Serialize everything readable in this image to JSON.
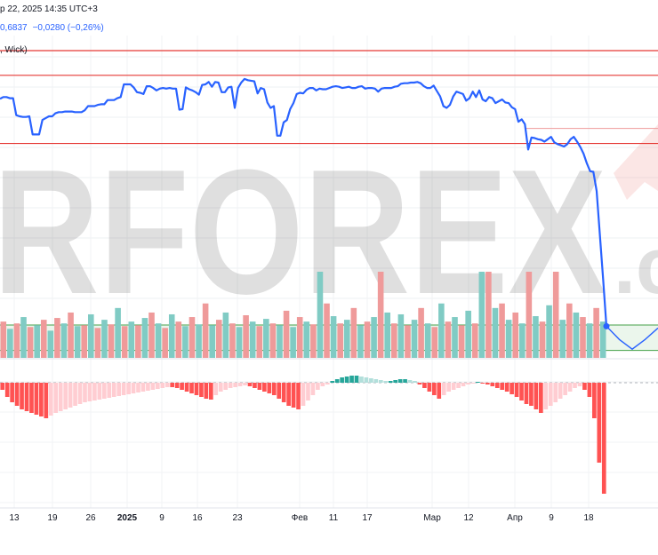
{
  "header": {
    "datetime": "р 22, 2025 14:35 UTC+3",
    "price": "0,6837",
    "change": "−0,0280 (−0,26%)",
    "style": ", Wick)"
  },
  "watermark": {
    "text": "RFOREX",
    "suffix": ".c"
  },
  "colors": {
    "price_line": "#2962ff",
    "level_line": "#e53935",
    "range_band": "#e8f5e9",
    "range_border": "#43a047",
    "volume_up": "#80cbc4",
    "volume_down": "#ef9a9a",
    "hist_neg_strong": "#ff5252",
    "hist_neg_weak": "#ffcdd2",
    "hist_pos_strong": "#26a69a",
    "hist_pos_weak": "#b2dfdb"
  },
  "chart_data": {
    "type": "line",
    "xlabel": "",
    "ylabel": "",
    "grid": true,
    "x_tick_labels": [
      "13",
      "19",
      "26",
      "2025",
      "9",
      "16",
      "23",
      "Фев",
      "11",
      "17",
      "Мар",
      "12",
      "Апр",
      "9",
      "18"
    ],
    "price_series": [
      107.5,
      107.8,
      107.8,
      107.6,
      107.6,
      104.8,
      104.6,
      104.5,
      104.5,
      104.6,
      101.6,
      101.6,
      101.6,
      104.0,
      104.3,
      104.6,
      104.6,
      105.1,
      105.3,
      105.3,
      105.4,
      105.4,
      105.4,
      105.3,
      105.3,
      105.3,
      105.6,
      106.3,
      106.3,
      106.3,
      106.5,
      106.6,
      106.6,
      107.3,
      107.3,
      107.3,
      107.6,
      107.8,
      109.9,
      109.9,
      109.9,
      109.4,
      108.6,
      108.5,
      108.3,
      109.6,
      109.6,
      109.3,
      108.9,
      109.2,
      109.3,
      109.2,
      109.3,
      109.2,
      109.2,
      105.7,
      105.8,
      109.4,
      109.1,
      108.9,
      108.6,
      108.2,
      109.8,
      109.9,
      110.3,
      109.5,
      110.3,
      110.2,
      108.6,
      108.6,
      109.4,
      109.5,
      106.0,
      109.3,
      110.2,
      110.8,
      110.6,
      110.5,
      110.4,
      108.4,
      109.3,
      109.1,
      106.9,
      106.0,
      106.3,
      101.4,
      101.4,
      103.6,
      104.0,
      105.8,
      106.8,
      108.3,
      108.5,
      108.4,
      109.0,
      109.3,
      109.3,
      108.9,
      109.2,
      109.1,
      109.1,
      109.3,
      109.5,
      109.6,
      109.5,
      109.3,
      109.4,
      109.5,
      109.3,
      109.3,
      109.5,
      109.6,
      109.2,
      109.3,
      109.3,
      109.2,
      108.7,
      109.2,
      109.3,
      109.3,
      109.3,
      109.5,
      109.6,
      110.0,
      110.1,
      110.1,
      110.2,
      110.2,
      110.3,
      110.1,
      109.6,
      109.3,
      109.3,
      109.7,
      108.8,
      107.9,
      106.3,
      106.0,
      106.5,
      107.9,
      108.7,
      108.5,
      108.3,
      107.2,
      107.6,
      108.7,
      107.8,
      108.9,
      107.4,
      107.1,
      107.8,
      107.6,
      106.8,
      107.1,
      107.4,
      106.9,
      106.8,
      106.1,
      105.8,
      103.7,
      104.1,
      103.3,
      99.1,
      101.1,
      101.0,
      100.8,
      100.7,
      100.4,
      100.8,
      101.2,
      100.3,
      100.0,
      99.8,
      99.6,
      100.0,
      100.8,
      101.2,
      100.4,
      99.5,
      98.4,
      96.8,
      95.5,
      95.4,
      92.2,
      84.8,
      77.6,
      69.8
    ],
    "forecast_series": [
      69.8,
      67.6,
      66.0,
      67.6,
      69.5
    ],
    "y_range": [
      65,
      118
    ],
    "horizontal_levels": [
      115.5,
      111.4,
      100.1
    ],
    "secondary_level": 102.6,
    "range_band": [
      70.0,
      65.8
    ],
    "volume": [
      {
        "dir": "down",
        "v": 40
      },
      {
        "dir": "up",
        "v": 32
      },
      {
        "dir": "down",
        "v": 38
      },
      {
        "dir": "up",
        "v": 45
      },
      {
        "dir": "down",
        "v": 34
      },
      {
        "dir": "up",
        "v": 36
      },
      {
        "dir": "down",
        "v": 42
      },
      {
        "dir": "up",
        "v": 30
      },
      {
        "dir": "down",
        "v": 44
      },
      {
        "dir": "up",
        "v": 38
      },
      {
        "dir": "down",
        "v": 50
      },
      {
        "dir": "up",
        "v": 35
      },
      {
        "dir": "down",
        "v": 36
      },
      {
        "dir": "up",
        "v": 48
      },
      {
        "dir": "down",
        "v": 33
      },
      {
        "dir": "up",
        "v": 42
      },
      {
        "dir": "down",
        "v": 37
      },
      {
        "dir": "up",
        "v": 55
      },
      {
        "dir": "down",
        "v": 35
      },
      {
        "dir": "up",
        "v": 40
      },
      {
        "dir": "down",
        "v": 36
      },
      {
        "dir": "up",
        "v": 44
      },
      {
        "dir": "down",
        "v": 50
      },
      {
        "dir": "up",
        "v": 38
      },
      {
        "dir": "down",
        "v": 33
      },
      {
        "dir": "up",
        "v": 48
      },
      {
        "dir": "down",
        "v": 40
      },
      {
        "dir": "up",
        "v": 35
      },
      {
        "dir": "down",
        "v": 45
      },
      {
        "dir": "up",
        "v": 37
      },
      {
        "dir": "down",
        "v": 60
      },
      {
        "dir": "up",
        "v": 36
      },
      {
        "dir": "down",
        "v": 42
      },
      {
        "dir": "up",
        "v": 50
      },
      {
        "dir": "down",
        "v": 38
      },
      {
        "dir": "up",
        "v": 34
      },
      {
        "dir": "down",
        "v": 47
      },
      {
        "dir": "up",
        "v": 40
      },
      {
        "dir": "down",
        "v": 35
      },
      {
        "dir": "up",
        "v": 43
      },
      {
        "dir": "down",
        "v": 38
      },
      {
        "dir": "up",
        "v": 36
      },
      {
        "dir": "down",
        "v": 52
      },
      {
        "dir": "up",
        "v": 34
      },
      {
        "dir": "down",
        "v": 45
      },
      {
        "dir": "up",
        "v": 40
      },
      {
        "dir": "down",
        "v": 37
      },
      {
        "dir": "up",
        "v": 95
      },
      {
        "dir": "down",
        "v": 60
      },
      {
        "dir": "up",
        "v": 46
      },
      {
        "dir": "down",
        "v": 38
      },
      {
        "dir": "up",
        "v": 42
      },
      {
        "dir": "down",
        "v": 55
      },
      {
        "dir": "up",
        "v": 36
      },
      {
        "dir": "down",
        "v": 40
      },
      {
        "dir": "up",
        "v": 45
      },
      {
        "dir": "down",
        "v": 95
      },
      {
        "dir": "up",
        "v": 50
      },
      {
        "dir": "down",
        "v": 38
      },
      {
        "dir": "up",
        "v": 48
      },
      {
        "dir": "down",
        "v": 36
      },
      {
        "dir": "up",
        "v": 42
      },
      {
        "dir": "down",
        "v": 55
      },
      {
        "dir": "up",
        "v": 38
      },
      {
        "dir": "down",
        "v": 34
      },
      {
        "dir": "up",
        "v": 60
      },
      {
        "dir": "down",
        "v": 40
      },
      {
        "dir": "up",
        "v": 45
      },
      {
        "dir": "down",
        "v": 36
      },
      {
        "dir": "up",
        "v": 52
      },
      {
        "dir": "down",
        "v": 38
      },
      {
        "dir": "up",
        "v": 95
      },
      {
        "dir": "down",
        "v": 95
      },
      {
        "dir": "up",
        "v": 55
      },
      {
        "dir": "down",
        "v": 60
      },
      {
        "dir": "up",
        "v": 42
      },
      {
        "dir": "down",
        "v": 50
      },
      {
        "dir": "up",
        "v": 38
      },
      {
        "dir": "down",
        "v": 95
      },
      {
        "dir": "up",
        "v": 46
      },
      {
        "dir": "down",
        "v": 40
      },
      {
        "dir": "up",
        "v": 58
      },
      {
        "dir": "down",
        "v": 95
      },
      {
        "dir": "up",
        "v": 42
      },
      {
        "dir": "down",
        "v": 60
      },
      {
        "dir": "up",
        "v": 50
      },
      {
        "dir": "down",
        "v": 45
      },
      {
        "dir": "up",
        "v": 38
      },
      {
        "dir": "down",
        "v": 55
      },
      {
        "dir": "up",
        "v": 40
      }
    ],
    "histogram": [
      -8,
      -16,
      -22,
      -26,
      -30,
      -32,
      -34,
      -36,
      -38,
      -40,
      -37,
      -34,
      -32,
      -30,
      -28,
      -26,
      -24,
      -22,
      -21,
      -20,
      -19,
      -18,
      -17,
      -16,
      -15,
      -14,
      -13,
      -12,
      -11,
      -10,
      -9,
      -8,
      -7,
      -6,
      -5,
      -5,
      -6,
      -8,
      -10,
      -12,
      -14,
      -16,
      -18,
      -19,
      -14,
      -10,
      -8,
      -6,
      -5,
      -4,
      -3,
      -4,
      -6,
      -8,
      -10,
      -12,
      -14,
      -18,
      -22,
      -26,
      -28,
      -30,
      -26,
      -20,
      -14,
      -8,
      -4,
      -2,
      2,
      4,
      6,
      7,
      8,
      8,
      7,
      6,
      5,
      4,
      3,
      2,
      2,
      3,
      4,
      4,
      3,
      2,
      -2,
      -6,
      -10,
      -14,
      -18,
      -14,
      -10,
      -8,
      -6,
      -4,
      -2,
      -1,
      1,
      -1,
      -2,
      -4,
      -6,
      -8,
      -10,
      -13,
      -16,
      -20,
      -24,
      -26,
      -30,
      -34,
      -30,
      -26,
      -22,
      -18,
      -14,
      -10,
      -6,
      -4,
      -8,
      -16,
      -40,
      -90,
      -125
    ]
  }
}
